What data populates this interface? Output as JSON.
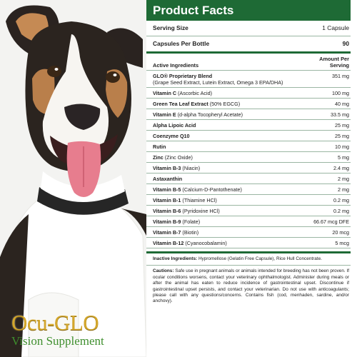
{
  "brand": {
    "name": "Ocu-GLO",
    "subtitle": "Vision Supplement",
    "colors": {
      "gold": "#d4a72c",
      "green": "#3f8f2e"
    }
  },
  "facts": {
    "title": "Product Facts",
    "accent": "#1e6a35",
    "serving_size_label": "Serving Size",
    "serving_size_value": "1 Capsule",
    "capsules_label": "Capsules Per Bottle",
    "capsules_value": "90",
    "active_label": "Active Ingredients",
    "amount_label": "Amount Per Serving",
    "ingredients": [
      {
        "name": "GLO® Proprietary Blend",
        "detail": "(Grape Seed Extract, Lutein Extract, Omega 3 EPA/DHA)",
        "amount": "351 mg"
      },
      {
        "name": "Vitamin C",
        "detail": "(Ascorbic Acid)",
        "amount": "100 mg"
      },
      {
        "name": "Green Tea Leaf Extract",
        "detail": "(50% EGCG)",
        "amount": "40 mg"
      },
      {
        "name": "Vitamin E",
        "detail": "(d-alpha Tocopheryl Acetate)",
        "amount": "33.5 mg"
      },
      {
        "name": "Alpha Lipoic Acid",
        "detail": "",
        "amount": "25 mg"
      },
      {
        "name": "Coenzyme Q10",
        "detail": "",
        "amount": "25 mg"
      },
      {
        "name": "Rutin",
        "detail": "",
        "amount": "10 mg"
      },
      {
        "name": "Zinc",
        "detail": "(Zinc Oxide)",
        "amount": "5 mg"
      },
      {
        "name": "Vitamin B-3",
        "detail": "(Niacin)",
        "amount": "2.4 mg"
      },
      {
        "name": "Astaxanthin",
        "detail": "",
        "amount": "2 mg"
      },
      {
        "name": "Vitamin B-5",
        "detail": "(Calcium-D-Pantothenate)",
        "amount": "2 mg"
      },
      {
        "name": "Vitamin B-1",
        "detail": "(Thiamine HCl)",
        "amount": "0.2 mg"
      },
      {
        "name": "Vitamin B-6",
        "detail": "(Pyridoxine HCl)",
        "amount": "0.2 mg"
      },
      {
        "name": "Vitamin B-9",
        "detail": "(Folate)",
        "amount": "66.67 mcg DFE"
      },
      {
        "name": "Vitamin B-7",
        "detail": "(Biotin)",
        "amount": "20 mcg"
      },
      {
        "name": "Vitamin B-12",
        "detail": "(Cyanocobalamin)",
        "amount": "5 mcg"
      }
    ],
    "inactive_label": "Inactive Ingredients:",
    "inactive_text": "Hypromellose (Gelatin Free Capsule), Rice Hull Concentrate.",
    "cautions_label": "Cautions:",
    "cautions_text": "Safe use in pregnant animals or animals intended for breeding has not been proven. If ocular conditions worsens, contact your veterinary ophthalmologist. Administer during meals or after the animal has eaten to reduce incidence of gastrointestinal upset. Discontinue if gastrointestinal upset persists, and contact your veterinarian. Do not use with anticoagulants; please call with any questions/concerns. Contains fish (cod, menhaden, sardine, and/or anchovy)."
  }
}
